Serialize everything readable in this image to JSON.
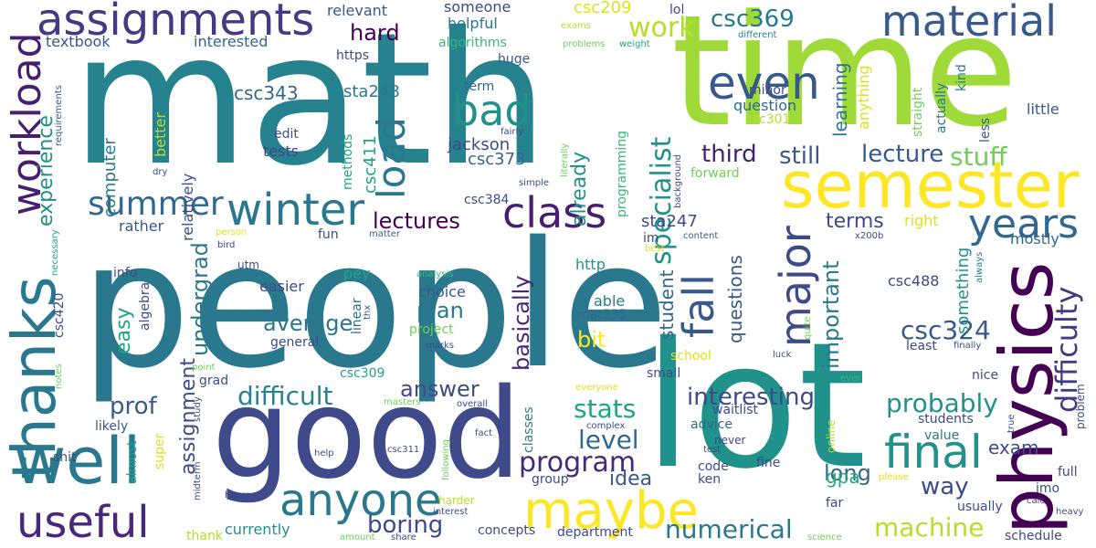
{
  "words": [
    {
      "text": "people",
      "color": "#2a788e"
    },
    {
      "text": "math",
      "color": "#26828e"
    },
    {
      "text": "time",
      "color": "#a0da39"
    },
    {
      "text": "lot",
      "color": "#21918c"
    },
    {
      "text": "good",
      "color": "#3e4a89"
    },
    {
      "text": "physics",
      "color": "#440154"
    },
    {
      "text": "thanks",
      "color": "#2a788e"
    },
    {
      "text": "semester",
      "color": "#fde725"
    },
    {
      "text": "well",
      "color": "#2a788e"
    },
    {
      "text": "assignments",
      "color": "#443983"
    },
    {
      "text": "material",
      "color": "#38598c"
    },
    {
      "text": "maybe",
      "color": "#fde725"
    },
    {
      "text": "anyone",
      "color": "#2a788e"
    },
    {
      "text": "useful",
      "color": "#482878"
    },
    {
      "text": "final",
      "color": "#21918c"
    },
    {
      "text": "workload",
      "color": "#481f70"
    },
    {
      "text": "winter",
      "color": "#2a788e"
    },
    {
      "text": "major",
      "color": "#3e4a89"
    },
    {
      "text": "even",
      "color": "#38598c"
    },
    {
      "text": "class",
      "color": "#481f70"
    },
    {
      "text": "bad",
      "color": "#21918c"
    },
    {
      "text": "years",
      "color": "#31688e"
    },
    {
      "text": "fall",
      "color": "#38598c"
    },
    {
      "text": "load",
      "color": "#2a788e"
    },
    {
      "text": "summer",
      "color": "#31688e"
    },
    {
      "text": "difficulty",
      "color": "#443983"
    },
    {
      "text": "work",
      "color": "#b5de2b"
    },
    {
      "text": "specialist",
      "color": "#21918c"
    },
    {
      "text": "stuff",
      "color": "#6ece58"
    },
    {
      "text": "program",
      "color": "#482878"
    },
    {
      "text": "level",
      "color": "#31688e"
    },
    {
      "text": "difficult",
      "color": "#26828e"
    },
    {
      "text": "interesting",
      "color": "#3e4a89"
    },
    {
      "text": "probably",
      "color": "#21918c"
    },
    {
      "text": "machine",
      "color": "#b5de2b"
    },
    {
      "text": "numerical",
      "color": "#2a788e"
    },
    {
      "text": "boring",
      "color": "#3e4a89"
    },
    {
      "text": "csc324",
      "color": "#38598c"
    },
    {
      "text": "important",
      "color": "#2a788e"
    },
    {
      "text": "lectures",
      "color": "#440154"
    },
    {
      "text": "lecture",
      "color": "#38598c"
    },
    {
      "text": "third",
      "color": "#481f70"
    },
    {
      "text": "still",
      "color": "#38598c"
    },
    {
      "text": "csc369",
      "color": "#2a788e"
    },
    {
      "text": "hard",
      "color": "#440154"
    },
    {
      "text": "stats",
      "color": "#20a386"
    },
    {
      "text": "prof",
      "color": "#38598c"
    },
    {
      "text": "answer",
      "color": "#3e4a89"
    },
    {
      "text": "average",
      "color": "#2a788e"
    },
    {
      "text": "assignment",
      "color": "#3e4a89"
    },
    {
      "text": "basically",
      "color": "#482878"
    },
    {
      "text": "undergrad",
      "color": "#2a788e"
    },
    {
      "text": "long",
      "color": "#31688e"
    },
    {
      "text": "way",
      "color": "#3e4a89"
    },
    {
      "text": "easy",
      "color": "#20a386"
    },
    {
      "text": "experience",
      "color": "#21918c"
    },
    {
      "text": "gpa",
      "color": "#22a884"
    },
    {
      "text": "learning",
      "color": "#2a788e"
    },
    {
      "text": "exam",
      "color": "#3e4a89"
    },
    {
      "text": "already",
      "color": "#21918c"
    },
    {
      "text": "bit",
      "color": "#fde725"
    },
    {
      "text": "plan",
      "color": "#2a788e"
    },
    {
      "text": "terms",
      "color": "#3e4a89"
    },
    {
      "text": "idea",
      "color": "#38598c"
    },
    {
      "text": "something",
      "color": "#21918c"
    },
    {
      "text": "questions",
      "color": "#38598c"
    },
    {
      "text": "student",
      "color": "#31688e"
    },
    {
      "text": "csc343",
      "color": "#31688e"
    },
    {
      "text": "csc373",
      "color": "#31688e"
    },
    {
      "text": "csc411",
      "color": "#20a386"
    },
    {
      "text": "jackson",
      "color": "#3e4a89"
    },
    {
      "text": "csc209",
      "color": "#dde318"
    },
    {
      "text": "sta248",
      "color": "#2a788e"
    },
    {
      "text": "sta247",
      "color": "#3e4a89"
    },
    {
      "text": "textbook",
      "color": "#38598c"
    },
    {
      "text": "interested",
      "color": "#31688e"
    },
    {
      "text": "relevant",
      "color": "#38598c"
    },
    {
      "text": "someone",
      "color": "#3e4a89"
    },
    {
      "text": "helpful",
      "color": "#2a788e"
    },
    {
      "text": "algorithms",
      "color": "#35b779"
    },
    {
      "text": "https",
      "color": "#3e4a89"
    },
    {
      "text": "huge",
      "color": "#38598c"
    },
    {
      "text": "term",
      "color": "#31688e"
    },
    {
      "text": "lol",
      "color": "#3e4a89"
    },
    {
      "text": "exams",
      "color": "#b5de2b"
    },
    {
      "text": "problems",
      "color": "#6ece58"
    },
    {
      "text": "weight",
      "color": "#20a386"
    },
    {
      "text": "different",
      "color": "#26828e"
    },
    {
      "text": "minor",
      "color": "#3e4a89"
    },
    {
      "text": "question",
      "color": "#31688e"
    },
    {
      "text": "csc301",
      "color": "#b5de2b"
    },
    {
      "text": "kind",
      "color": "#2a788e"
    },
    {
      "text": "little",
      "color": "#38598c"
    },
    {
      "text": "straight",
      "color": "#6ece58"
    },
    {
      "text": "actually",
      "color": "#2a788e"
    },
    {
      "text": "less",
      "color": "#38598c"
    },
    {
      "text": "anything",
      "color": "#dde318"
    },
    {
      "text": "computer",
      "color": "#2a788e"
    },
    {
      "text": "better",
      "color": "#b5de2b"
    },
    {
      "text": "relatively",
      "color": "#3e4a89"
    },
    {
      "text": "edit",
      "color": "#3e4a89"
    },
    {
      "text": "tests",
      "color": "#3e4a89"
    },
    {
      "text": "methods",
      "color": "#20a386"
    },
    {
      "text": "csc384",
      "color": "#3e4a89"
    },
    {
      "text": "programming",
      "color": "#35b779"
    },
    {
      "text": "fairly",
      "color": "#3e4a89"
    },
    {
      "text": "literally",
      "color": "#6ece58"
    },
    {
      "text": "simple",
      "color": "#3e4a89"
    },
    {
      "text": "background",
      "color": "#3e4a89"
    },
    {
      "text": "forward",
      "color": "#6ece58"
    },
    {
      "text": "requirements",
      "color": "#38598c"
    },
    {
      "text": "dry",
      "color": "#3e4a89"
    },
    {
      "text": "right",
      "color": "#dde318"
    },
    {
      "text": "mostly",
      "color": "#31688e"
    },
    {
      "text": "rather",
      "color": "#38598c"
    },
    {
      "text": "info",
      "color": "#3e4a89"
    },
    {
      "text": "algebra",
      "color": "#3e4a89"
    },
    {
      "text": "pey",
      "color": "#20a386"
    },
    {
      "text": "fun",
      "color": "#3e4a89"
    },
    {
      "text": "http",
      "color": "#21918c"
    },
    {
      "text": "im",
      "color": "#3e4a89"
    },
    {
      "text": "content",
      "color": "#38598c"
    },
    {
      "text": "best",
      "color": "#dde318"
    },
    {
      "text": "x200b",
      "color": "#3e4a89"
    },
    {
      "text": "csc488",
      "color": "#3e4a89"
    },
    {
      "text": "always",
      "color": "#2a788e"
    },
    {
      "text": "necessary",
      "color": "#20a386"
    },
    {
      "text": "person",
      "color": "#dde318"
    },
    {
      "text": "bird",
      "color": "#3e4a89"
    },
    {
      "text": "matter",
      "color": "#38598c"
    },
    {
      "text": "utm",
      "color": "#3e4a89"
    },
    {
      "text": "csc420",
      "color": "#3e4a89"
    },
    {
      "text": "easier",
      "color": "#3e4a89"
    },
    {
      "text": "linear",
      "color": "#31688e"
    },
    {
      "text": "thx",
      "color": "#38598c"
    },
    {
      "text": "analysis",
      "color": "#35b779"
    },
    {
      "text": "choice",
      "color": "#38598c"
    },
    {
      "text": "able",
      "color": "#2a788e"
    },
    {
      "text": "mat235",
      "color": "#31688e"
    },
    {
      "text": "project",
      "color": "#6ece58"
    },
    {
      "text": "general",
      "color": "#3e4a89"
    },
    {
      "text": "marks",
      "color": "#3e4a89"
    },
    {
      "text": "school",
      "color": "#dde318"
    },
    {
      "text": "luck",
      "color": "#3e4a89"
    },
    {
      "text": "quite",
      "color": "#6ece58"
    },
    {
      "text": "least",
      "color": "#3e4a89"
    },
    {
      "text": "finally",
      "color": "#3e4a89"
    },
    {
      "text": "point",
      "color": "#6ece58"
    },
    {
      "text": "grad",
      "color": "#3e4a89"
    },
    {
      "text": "csc309",
      "color": "#20a386"
    },
    {
      "text": "small",
      "color": "#3e4a89"
    },
    {
      "text": "ever",
      "color": "#35b779"
    },
    {
      "text": "nice",
      "color": "#3e4a89"
    },
    {
      "text": "notes",
      "color": "#6ece58"
    },
    {
      "text": "masters",
      "color": "#6ece58"
    },
    {
      "text": "overall",
      "color": "#3e4a89"
    },
    {
      "text": "everyone",
      "color": "#dde318"
    },
    {
      "text": "classes",
      "color": "#2a788e"
    },
    {
      "text": "waitlist",
      "color": "#3e4a89"
    },
    {
      "text": "likely",
      "color": "#38598c"
    },
    {
      "text": "study",
      "color": "#3e4a89"
    },
    {
      "text": "complex",
      "color": "#3e4a89"
    },
    {
      "text": "advice",
      "color": "#31688e"
    },
    {
      "text": "problem",
      "color": "#3e4a89"
    },
    {
      "text": "students",
      "color": "#3e4a89"
    },
    {
      "text": "true",
      "color": "#3e4a89"
    },
    {
      "text": "value",
      "color": "#2a788e"
    },
    {
      "text": "shit",
      "color": "#3e4a89"
    },
    {
      "text": "almost",
      "color": "#20a386"
    },
    {
      "text": "super",
      "color": "#dde318"
    },
    {
      "text": "fact",
      "color": "#3e4a89"
    },
    {
      "text": "never",
      "color": "#3e4a89"
    },
    {
      "text": "test",
      "color": "#3e4a89"
    },
    {
      "text": "online",
      "color": "#b5de2b"
    },
    {
      "text": "full",
      "color": "#3e4a89"
    },
    {
      "text": "help",
      "color": "#3e4a89"
    },
    {
      "text": "csc311",
      "color": "#3e4a89"
    },
    {
      "text": "following",
      "color": "#6ece58"
    },
    {
      "text": "group",
      "color": "#3e4a89"
    },
    {
      "text": "code",
      "color": "#3e4a89"
    },
    {
      "text": "fine",
      "color": "#3e4a89"
    },
    {
      "text": "ken",
      "color": "#3e4a89"
    },
    {
      "text": "imo",
      "color": "#3e4a89"
    },
    {
      "text": "calc",
      "color": "#3e4a89"
    },
    {
      "text": "please",
      "color": "#dde318"
    },
    {
      "text": "midterm",
      "color": "#3e4a89"
    },
    {
      "text": "hours",
      "color": "#3e4a89"
    },
    {
      "text": "harder",
      "color": "#b5de2b"
    },
    {
      "text": "interest",
      "color": "#3e4a89"
    },
    {
      "text": "far",
      "color": "#3e4a89"
    },
    {
      "text": "heavy",
      "color": "#3e4a89"
    },
    {
      "text": "usually",
      "color": "#3e4a89"
    },
    {
      "text": "thank",
      "color": "#b5de2b"
    },
    {
      "text": "currently",
      "color": "#21918c"
    },
    {
      "text": "concepts",
      "color": "#3e4a89"
    },
    {
      "text": "department",
      "color": "#3e4a89"
    },
    {
      "text": "amount",
      "color": "#6ece58"
    },
    {
      "text": "share",
      "color": "#3e4a89"
    },
    {
      "text": "science",
      "color": "#6ece58"
    },
    {
      "text": "schedule",
      "color": "#3e4a89"
    }
  ]
}
